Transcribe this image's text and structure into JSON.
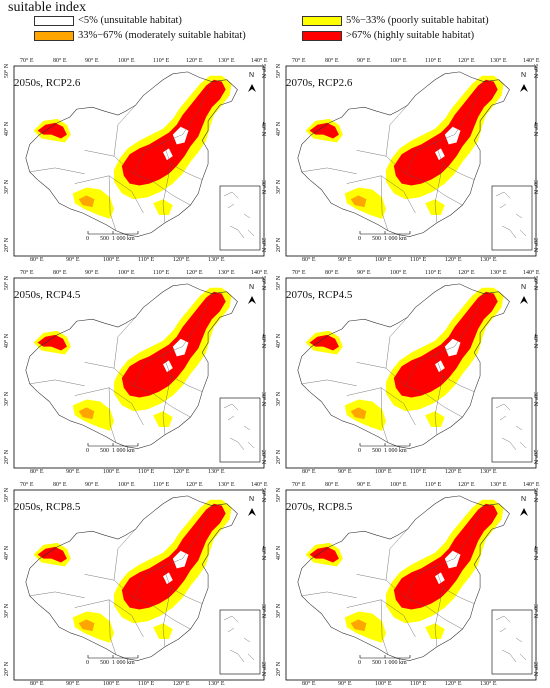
{
  "legend": {
    "title": "suitable index",
    "items": [
      {
        "label": "<5% (unsuitable habitat)",
        "color": "#ffffff"
      },
      {
        "label": "5%−33% (poorly suitable habitat)",
        "color": "#ffff00"
      },
      {
        "label": "33%−67% (moderately suitable habitat)",
        "color": "#ffa500"
      },
      {
        "label": ">67% (highly suitable habitat)",
        "color": "#ff0000"
      }
    ]
  },
  "axes": {
    "top_ticks": [
      "70° E",
      "80° E",
      "90° E",
      "100° E",
      "110° E",
      "120° E",
      "130° E",
      "140° E"
    ],
    "bottom_ticks": [
      "80° E",
      "90° E",
      "100° E",
      "110° E",
      "120° E",
      "130° E"
    ],
    "left_ticks": [
      "50° N",
      "40° N",
      "30° N",
      "20° N"
    ],
    "right_ticks": [
      "50° N",
      "40° N",
      "30° N",
      "20° N"
    ]
  },
  "north_label": "N",
  "scale": {
    "labels": [
      "0",
      "500",
      "1 000 km"
    ]
  },
  "panels": [
    {
      "title": "2050s, RCP2.6"
    },
    {
      "title": "2070s, RCP2.6"
    },
    {
      "title": "2050s, RCP4.5"
    },
    {
      "title": "2070s, RCP4.5"
    },
    {
      "title": "2050s, RCP8.5"
    },
    {
      "title": "2070s, RCP8.5"
    }
  ]
}
